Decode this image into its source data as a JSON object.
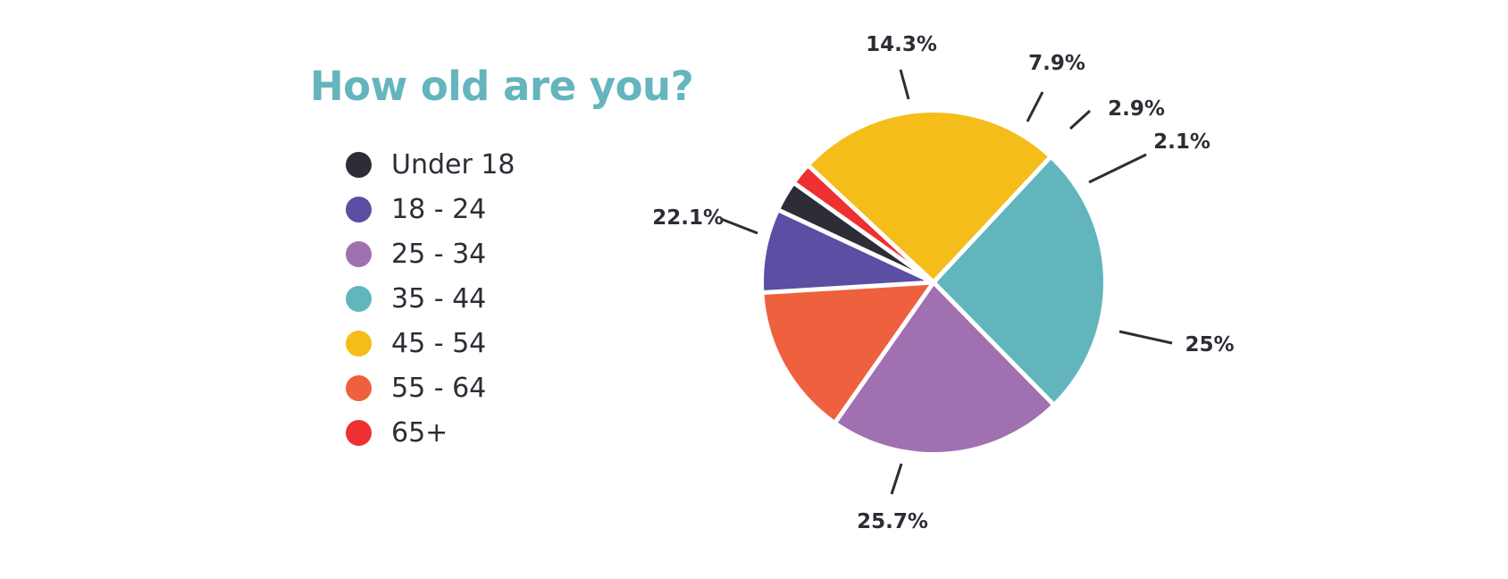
{
  "chart_data": {
    "type": "pie",
    "title": "How old are you?",
    "slices": [
      {
        "label": "Under 18",
        "value": 2.9,
        "display": "2.9%",
        "color": "#2c2d35"
      },
      {
        "label": "18 - 24",
        "value": 7.9,
        "display": "7.9%",
        "color": "#5a4fa2"
      },
      {
        "label": "25 - 34",
        "value": 22.1,
        "display": "22.1%",
        "color": "#a070b0"
      },
      {
        "label": "35 - 44",
        "value": 25.7,
        "display": "25.7%",
        "color": "#62b5bd"
      },
      {
        "label": "45 - 54",
        "value": 25,
        "display": "25%",
        "color": "#f4bd1a"
      },
      {
        "label": "55 - 64",
        "value": 14.3,
        "display": "14.3%",
        "color": "#ee603e"
      },
      {
        "label": "65+",
        "value": 2.1,
        "display": "2.1%",
        "color": "#ee3030"
      }
    ],
    "legend_position": "left"
  }
}
